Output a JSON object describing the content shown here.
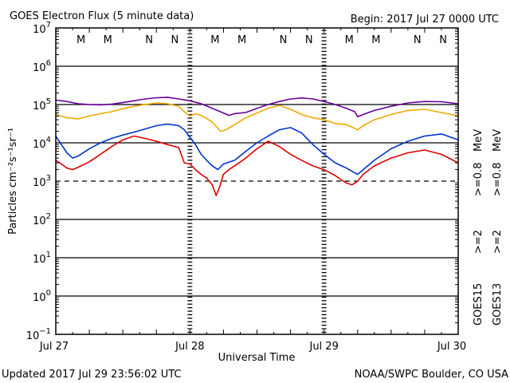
{
  "chart_data": {
    "type": "line",
    "title": "GOES Electron Flux (5 minute data)",
    "begin": "Begin: 2017 Jul 27 0000 UTC",
    "ylabel": "Particles cm⁻²s⁻¹sr⁻¹",
    "xlabel": "Universal Time",
    "y_scale": "log",
    "ylim": [
      0.1,
      10000000
    ],
    "y_ticks": [
      {
        "base": "10",
        "exp": "7"
      },
      {
        "base": "10",
        "exp": "6"
      },
      {
        "base": "10",
        "exp": "5"
      },
      {
        "base": "10",
        "exp": "4"
      },
      {
        "base": "10",
        "exp": "3"
      },
      {
        "base": "10",
        "exp": "2"
      },
      {
        "base": "10",
        "exp": "1"
      },
      {
        "base": "10",
        "exp": "0"
      },
      {
        "base": "10",
        "exp": "−1"
      }
    ],
    "x_range_hours": [
      0,
      72
    ],
    "x_ticks": [
      {
        "label": "Jul 27",
        "hour": 0
      },
      {
        "label": "Jul 28",
        "hour": 24
      },
      {
        "label": "Jul 29",
        "hour": 48
      },
      {
        "label": "Jul 30",
        "hour": 72
      }
    ],
    "threshold_line": 1000,
    "grid": true,
    "markers": [
      {
        "label": "M",
        "hour": 4.5,
        "color": "#d40000"
      },
      {
        "label": "M",
        "hour": 9.3,
        "color": "#0033cc"
      },
      {
        "label": "N",
        "hour": 16.7,
        "color": "#d40000"
      },
      {
        "label": "N",
        "hour": 21.3,
        "color": "#0033cc"
      },
      {
        "label": "M",
        "hour": 28.5,
        "color": "#d40000"
      },
      {
        "label": "M",
        "hour": 33.3,
        "color": "#0033cc"
      },
      {
        "label": "N",
        "hour": 40.7,
        "color": "#d40000"
      },
      {
        "label": "N",
        "hour": 45.3,
        "color": "#0033cc"
      },
      {
        "label": "M",
        "hour": 52.5,
        "color": "#d40000"
      },
      {
        "label": "M",
        "hour": 57.3,
        "color": "#0033cc"
      },
      {
        "label": "N",
        "hour": 64.7,
        "color": "#d40000"
      },
      {
        "label": "N",
        "hour": 69.3,
        "color": "#0033cc"
      }
    ],
    "legend": {
      "placement": "right",
      "columns": [
        {
          "sat": "GOES15",
          "lo": ">=0.8",
          "hi": ">=2",
          "unit": "MeV",
          "lo_color": "#660099",
          "hi_color": "#0033cc"
        },
        {
          "sat": "GOES13",
          "lo": ">=0.8",
          "hi": ">=2",
          "unit": "MeV",
          "lo_color": "#f0a800",
          "hi_color": "#dd0000"
        }
      ]
    },
    "series": [
      {
        "name": "GOES15 >=0.8 MeV",
        "color": "#660099",
        "points": [
          [
            0,
            130000
          ],
          [
            2,
            120000
          ],
          [
            4,
            105000
          ],
          [
            6,
            100000
          ],
          [
            8,
            98000
          ],
          [
            10,
            102000
          ],
          [
            12,
            112000
          ],
          [
            14,
            125000
          ],
          [
            16,
            140000
          ],
          [
            18,
            150000
          ],
          [
            20,
            155000
          ],
          [
            22,
            140000
          ],
          [
            24,
            125000
          ],
          [
            26,
            105000
          ],
          [
            28,
            80000
          ],
          [
            30,
            60000
          ],
          [
            31,
            52000
          ],
          [
            32,
            58000
          ],
          [
            34,
            62000
          ],
          [
            36,
            80000
          ],
          [
            38,
            100000
          ],
          [
            40,
            120000
          ],
          [
            42,
            140000
          ],
          [
            44,
            148000
          ],
          [
            46,
            140000
          ],
          [
            48,
            120000
          ],
          [
            50,
            100000
          ],
          [
            52,
            80000
          ],
          [
            53.5,
            65000
          ],
          [
            54,
            48000
          ],
          [
            55,
            55000
          ],
          [
            57,
            70000
          ],
          [
            60,
            90000
          ],
          [
            63,
            110000
          ],
          [
            66,
            120000
          ],
          [
            69,
            118000
          ],
          [
            72,
            105000
          ]
        ]
      },
      {
        "name": "GOES13 >=0.8 MeV",
        "color": "#f0a800",
        "points": [
          [
            0,
            55000
          ],
          [
            2,
            45000
          ],
          [
            4,
            42000
          ],
          [
            6,
            50000
          ],
          [
            8,
            58000
          ],
          [
            10,
            65000
          ],
          [
            12,
            78000
          ],
          [
            14,
            90000
          ],
          [
            16,
            100000
          ],
          [
            18,
            110000
          ],
          [
            20,
            105000
          ],
          [
            22,
            90000
          ],
          [
            23,
            65000
          ],
          [
            24,
            50000
          ],
          [
            25,
            58000
          ],
          [
            26,
            52000
          ],
          [
            28,
            35000
          ],
          [
            29.5,
            20000
          ],
          [
            30.5,
            22000
          ],
          [
            32,
            30000
          ],
          [
            34,
            45000
          ],
          [
            36,
            60000
          ],
          [
            38,
            80000
          ],
          [
            40,
            95000
          ],
          [
            42,
            75000
          ],
          [
            44,
            55000
          ],
          [
            46,
            45000
          ],
          [
            48,
            40000
          ],
          [
            50,
            32000
          ],
          [
            52,
            30000
          ],
          [
            54,
            22000
          ],
          [
            55,
            28000
          ],
          [
            57,
            40000
          ],
          [
            60,
            55000
          ],
          [
            63,
            70000
          ],
          [
            66,
            75000
          ],
          [
            69,
            62000
          ],
          [
            72,
            50000
          ]
        ]
      },
      {
        "name": "GOES15 >=2 MeV",
        "color": "#0033cc",
        "points": [
          [
            0,
            15000
          ],
          [
            1,
            9000
          ],
          [
            2,
            5500
          ],
          [
            3,
            4000
          ],
          [
            4,
            4500
          ],
          [
            6,
            7000
          ],
          [
            8,
            10000
          ],
          [
            10,
            13000
          ],
          [
            12,
            16000
          ],
          [
            14,
            19000
          ],
          [
            16,
            23000
          ],
          [
            18,
            28000
          ],
          [
            20,
            31000
          ],
          [
            22,
            28000
          ],
          [
            23,
            22000
          ],
          [
            24,
            14000
          ],
          [
            25,
            9000
          ],
          [
            26,
            5000
          ],
          [
            27,
            3500
          ],
          [
            28,
            2500
          ],
          [
            29,
            2000
          ],
          [
            30,
            2800
          ],
          [
            32,
            3500
          ],
          [
            34,
            6000
          ],
          [
            36,
            10000
          ],
          [
            38,
            15000
          ],
          [
            40,
            22000
          ],
          [
            42,
            25000
          ],
          [
            44,
            18000
          ],
          [
            46,
            9000
          ],
          [
            48,
            5000
          ],
          [
            50,
            3000
          ],
          [
            52,
            2200
          ],
          [
            53,
            1800
          ],
          [
            54,
            1500
          ],
          [
            55,
            2000
          ],
          [
            57,
            3500
          ],
          [
            60,
            7000
          ],
          [
            63,
            11000
          ],
          [
            66,
            15000
          ],
          [
            69,
            17000
          ],
          [
            72,
            12000
          ]
        ]
      },
      {
        "name": "GOES13 >=2 MeV",
        "color": "#dd0000",
        "points": [
          [
            0,
            3500
          ],
          [
            1,
            2800
          ],
          [
            2,
            2200
          ],
          [
            3,
            2000
          ],
          [
            4,
            2300
          ],
          [
            6,
            3200
          ],
          [
            8,
            5000
          ],
          [
            10,
            8000
          ],
          [
            12,
            12000
          ],
          [
            14,
            15000
          ],
          [
            16,
            13000
          ],
          [
            18,
            11000
          ],
          [
            20,
            9000
          ],
          [
            22,
            7500
          ],
          [
            23,
            3000
          ],
          [
            24,
            2800
          ],
          [
            25,
            2000
          ],
          [
            26,
            1500
          ],
          [
            27,
            1200
          ],
          [
            28,
            800
          ],
          [
            28.7,
            420
          ],
          [
            29.3,
            700
          ],
          [
            30,
            1500
          ],
          [
            31,
            2000
          ],
          [
            32,
            2500
          ],
          [
            34,
            4000
          ],
          [
            36,
            7000
          ],
          [
            38,
            11000
          ],
          [
            40,
            8000
          ],
          [
            42,
            5000
          ],
          [
            44,
            3500
          ],
          [
            46,
            2500
          ],
          [
            48,
            2000
          ],
          [
            50,
            1400
          ],
          [
            51,
            1100
          ],
          [
            52,
            900
          ],
          [
            53,
            800
          ],
          [
            54,
            1000
          ],
          [
            55,
            1500
          ],
          [
            57,
            2500
          ],
          [
            60,
            4000
          ],
          [
            63,
            5500
          ],
          [
            66,
            6500
          ],
          [
            69,
            5000
          ],
          [
            72,
            3000
          ]
        ]
      }
    ]
  },
  "footer": {
    "updated": "Updated 2017 Jul 29 23:56:02 UTC",
    "credit": "NOAA/SWPC Boulder, CO USA"
  }
}
